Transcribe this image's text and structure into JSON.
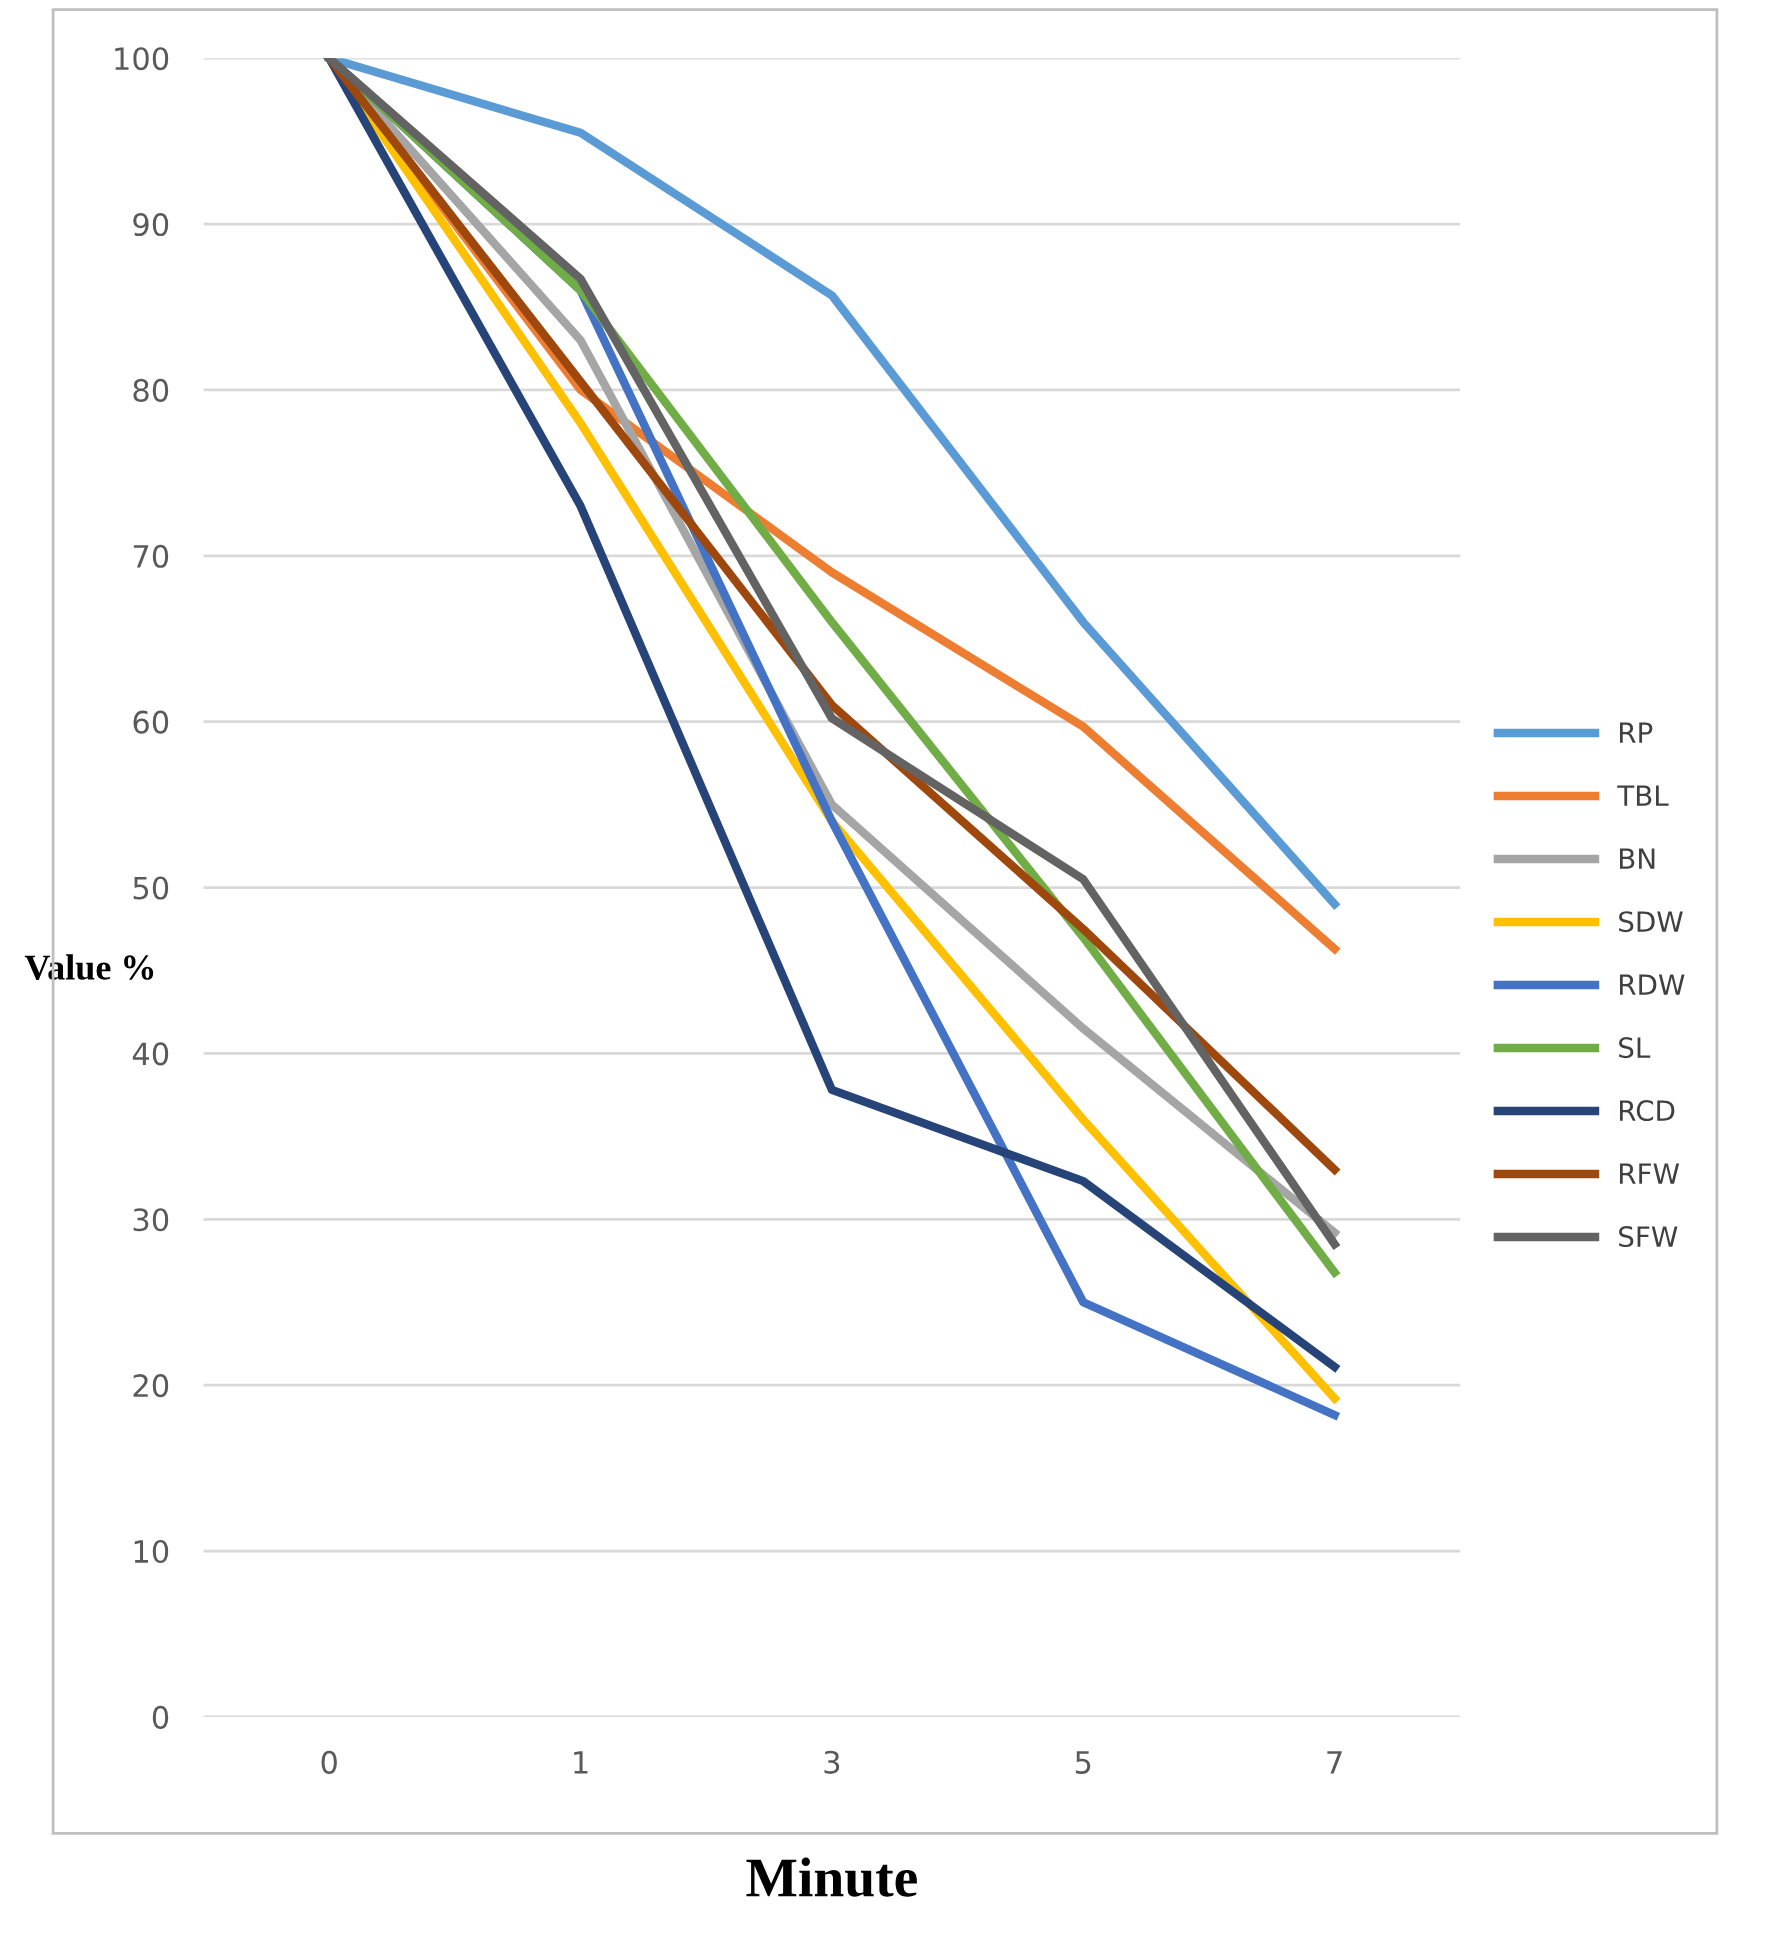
{
  "chart_data": {
    "type": "line",
    "xlabel": "Minute",
    "ylabel": "Value %",
    "categories": [
      "0",
      "1",
      "3",
      "5",
      "7"
    ],
    "ylim": [
      0,
      100
    ],
    "yticks": [
      0,
      10,
      20,
      30,
      40,
      50,
      60,
      70,
      80,
      90,
      100
    ],
    "grid": "y",
    "legend": "right",
    "marker": "none",
    "line_style": "solid",
    "series": [
      {
        "name": "RP",
        "color": "#5b9bd5",
        "values": [
          100,
          95.5,
          85.7,
          66,
          49
        ]
      },
      {
        "name": "TBL",
        "color": "#ed7d31",
        "values": [
          100,
          80,
          69,
          59.7,
          46.3
        ]
      },
      {
        "name": "BN",
        "color": "#a5a5a5",
        "values": [
          100,
          83,
          55,
          41.5,
          29.2
        ]
      },
      {
        "name": "SDW",
        "color": "#ffc000",
        "values": [
          100,
          78,
          54,
          36,
          19.2
        ]
      },
      {
        "name": "RDW",
        "color": "#4472c4",
        "values": [
          100,
          86,
          54,
          25,
          18.2
        ]
      },
      {
        "name": "SL",
        "color": "#70ad47",
        "values": [
          100,
          86,
          66,
          47,
          26.8
        ]
      },
      {
        "name": "RCD",
        "color": "#264478",
        "values": [
          100,
          73,
          37.8,
          32.3,
          21.1
        ]
      },
      {
        "name": "RFW",
        "color": "#9e480e",
        "values": [
          100,
          80.5,
          61,
          47.5,
          33
        ]
      },
      {
        "name": "SFW",
        "color": "#636363",
        "values": [
          100,
          86.7,
          60.2,
          50.5,
          28.5
        ]
      }
    ]
  }
}
